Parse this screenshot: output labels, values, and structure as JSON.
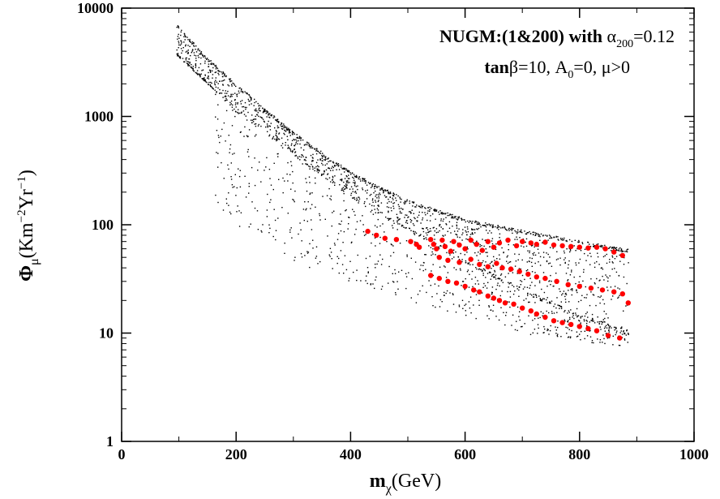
{
  "chart_data": {
    "type": "scatter",
    "title": "",
    "xlabel": {
      "main": "m",
      "sub": "χ",
      "rest": "(GeV)"
    },
    "ylabel": {
      "main": "Φ",
      "sub": "μ",
      "p1": "(Km",
      "sup1": "−2",
      "p2": "Yr",
      "sup2": "−1",
      "p3": ")"
    },
    "xlim": [
      0,
      1000
    ],
    "ylim": [
      1,
      10000
    ],
    "yscale": "log",
    "grid": false,
    "x_ticks": [
      0,
      200,
      400,
      600,
      800,
      1000
    ],
    "x_tick_labels": [
      "0",
      "200",
      "400",
      "600",
      "800",
      "1000"
    ],
    "y_ticks": [
      1,
      10,
      100,
      1000,
      10000
    ],
    "y_tick_labels": [
      "1",
      "10",
      "100",
      "1000",
      "10000"
    ],
    "annotations": {
      "line1": {
        "bold": "NUGM:(1&200) with ",
        "sym": "α",
        "sub": "200",
        "rest": "=0.12"
      },
      "line2": {
        "bold": "tan",
        "sym": "β",
        "rest1": "=10, A",
        "sub": "0",
        "rest2": "=0, μ>0"
      }
    },
    "series": [
      {
        "style": "black-dots",
        "color": "#000000",
        "x_range": [
          95,
          885
        ],
        "upper_envelope": [
          [
            95,
            7200
          ],
          [
            150,
            3500
          ],
          [
            200,
            2000
          ],
          [
            300,
            720
          ],
          [
            400,
            310
          ],
          [
            500,
            170
          ],
          [
            600,
            115
          ],
          [
            700,
            90
          ],
          [
            800,
            72
          ],
          [
            885,
            60
          ]
        ],
        "dense_band": [
          [
            95,
            3900
          ],
          [
            150,
            2100
          ],
          [
            200,
            1150
          ],
          [
            300,
            460
          ],
          [
            400,
            190
          ],
          [
            500,
            92
          ],
          [
            600,
            46
          ],
          [
            700,
            25
          ],
          [
            800,
            14.5
          ],
          [
            885,
            10.5
          ]
        ],
        "lower_envelope": [
          [
            160,
            160
          ],
          [
            200,
            90
          ],
          [
            300,
            45
          ],
          [
            400,
            30
          ],
          [
            500,
            20
          ],
          [
            600,
            14
          ],
          [
            700,
            10
          ],
          [
            800,
            8.5
          ],
          [
            885,
            7.5
          ]
        ]
      },
      {
        "style": "red-dots",
        "color": "#ff0000",
        "points": [
          [
            430,
            87
          ],
          [
            445,
            80
          ],
          [
            460,
            75
          ],
          [
            480,
            73
          ],
          [
            505,
            70
          ],
          [
            515,
            66
          ],
          [
            520,
            62
          ],
          [
            540,
            73
          ],
          [
            545,
            66
          ],
          [
            550,
            60
          ],
          [
            560,
            72
          ],
          [
            565,
            63
          ],
          [
            575,
            57
          ],
          [
            580,
            70
          ],
          [
            590,
            65
          ],
          [
            600,
            60
          ],
          [
            610,
            72
          ],
          [
            620,
            66
          ],
          [
            630,
            58
          ],
          [
            640,
            70
          ],
          [
            650,
            62
          ],
          [
            660,
            68
          ],
          [
            675,
            72
          ],
          [
            690,
            64
          ],
          [
            700,
            70
          ],
          [
            715,
            68
          ],
          [
            725,
            66
          ],
          [
            740,
            69
          ],
          [
            755,
            65
          ],
          [
            770,
            64
          ],
          [
            785,
            63
          ],
          [
            800,
            62
          ],
          [
            815,
            61
          ],
          [
            830,
            62
          ],
          [
            845,
            60
          ],
          [
            860,
            56
          ],
          [
            875,
            52
          ],
          [
            555,
            50
          ],
          [
            570,
            47
          ],
          [
            590,
            45
          ],
          [
            610,
            48
          ],
          [
            625,
            43
          ],
          [
            640,
            41
          ],
          [
            655,
            44
          ],
          [
            665,
            40
          ],
          [
            680,
            39
          ],
          [
            695,
            37
          ],
          [
            710,
            35
          ],
          [
            725,
            33
          ],
          [
            740,
            32
          ],
          [
            760,
            30
          ],
          [
            780,
            28
          ],
          [
            800,
            27
          ],
          [
            820,
            26
          ],
          [
            840,
            25
          ],
          [
            860,
            24
          ],
          [
            875,
            23
          ],
          [
            540,
            34
          ],
          [
            555,
            32
          ],
          [
            570,
            30
          ],
          [
            585,
            29
          ],
          [
            600,
            27
          ],
          [
            615,
            25
          ],
          [
            625,
            24
          ],
          [
            640,
            22
          ],
          [
            650,
            21
          ],
          [
            660,
            20
          ],
          [
            670,
            19
          ],
          [
            685,
            18.5
          ],
          [
            700,
            17
          ],
          [
            715,
            16
          ],
          [
            725,
            15
          ],
          [
            740,
            14
          ],
          [
            755,
            13
          ],
          [
            770,
            12.5
          ],
          [
            785,
            12
          ],
          [
            800,
            11.5
          ],
          [
            815,
            11
          ],
          [
            830,
            10.5
          ],
          [
            850,
            9.5
          ],
          [
            870,
            9
          ],
          [
            885,
            19
          ]
        ]
      }
    ]
  }
}
